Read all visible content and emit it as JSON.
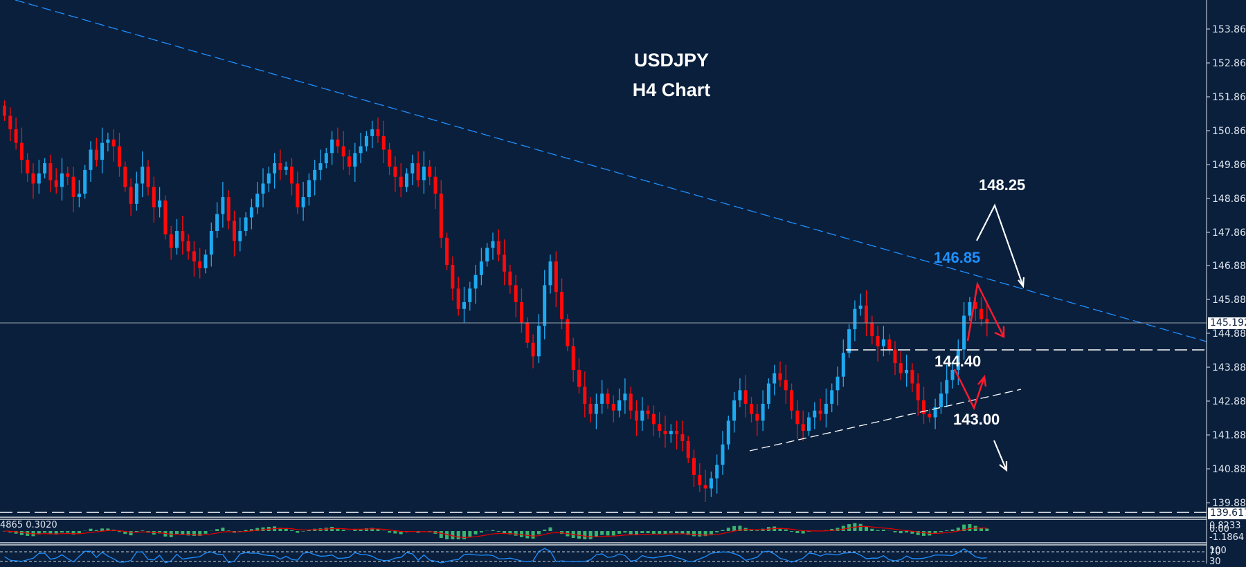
{
  "chart_data": {
    "type": "candlestick",
    "title": "USDJPY",
    "subtitle": "H4 Chart",
    "symbol": "USDJPY",
    "timeframe": "H4",
    "y_axis": {
      "ticks": [
        153.86,
        152.86,
        151.86,
        150.86,
        149.86,
        148.86,
        147.86,
        146.88,
        145.88,
        144.88,
        143.88,
        142.88,
        141.88,
        140.88,
        139.88
      ],
      "range": [
        139.2,
        154.7
      ]
    },
    "current_price": 145.192,
    "low_marker": 139.617,
    "colors": {
      "bull": "#1eaaf1",
      "bear": "#ff0a0a",
      "background": "#0a1f3c",
      "trendline": "#1e90ff"
    },
    "closes": [
      151.3,
      150.9,
      150.5,
      150.0,
      149.6,
      149.3,
      149.6,
      149.9,
      149.4,
      149.2,
      149.6,
      149.5,
      148.9,
      149.0,
      149.7,
      150.3,
      150.0,
      150.5,
      150.6,
      150.4,
      149.8,
      149.2,
      148.7,
      149.3,
      149.8,
      149.2,
      148.6,
      148.8,
      147.8,
      147.4,
      147.9,
      147.6,
      147.3,
      147.0,
      146.8,
      147.2,
      147.9,
      148.4,
      148.9,
      148.2,
      147.6,
      147.9,
      148.3,
      148.6,
      149.0,
      149.3,
      149.6,
      149.9,
      149.7,
      149.8,
      149.3,
      148.6,
      148.9,
      149.4,
      149.7,
      149.9,
      150.2,
      150.6,
      150.4,
      150.1,
      149.8,
      150.2,
      150.4,
      150.7,
      150.9,
      150.7,
      150.3,
      149.8,
      149.5,
      149.2,
      149.6,
      149.9,
      149.4,
      149.8,
      149.5,
      149.0,
      147.7,
      146.9,
      146.2,
      145.6,
      145.8,
      146.2,
      146.6,
      147.0,
      147.4,
      147.6,
      147.2,
      146.7,
      146.3,
      145.8,
      145.2,
      144.6,
      144.2,
      145.1,
      146.3,
      147.0,
      146.1,
      145.3,
      144.5,
      143.8,
      143.3,
      142.8,
      142.5,
      142.8,
      143.1,
      142.8,
      142.6,
      142.9,
      143.1,
      142.6,
      142.3,
      142.6,
      142.5,
      142.2,
      142.0,
      141.9,
      142.0,
      141.9,
      141.7,
      141.2,
      140.7,
      140.4,
      140.3,
      140.6,
      141.0,
      141.6,
      142.3,
      142.9,
      143.2,
      142.8,
      142.5,
      142.3,
      142.8,
      143.4,
      143.7,
      143.5,
      143.2,
      142.6,
      142.2,
      142.0,
      142.4,
      142.6,
      142.5,
      142.8,
      143.2,
      143.6,
      144.3,
      145.0,
      145.6,
      145.7,
      145.2,
      144.8,
      144.5,
      144.7,
      144.4,
      144.0,
      143.7,
      143.8,
      143.4,
      142.9,
      142.5,
      142.4,
      142.7,
      143.1,
      143.5,
      143.8,
      144.4,
      145.4,
      145.8,
      145.6,
      145.3,
      145.19
    ]
  },
  "macd": {
    "label_values": "4865 0.3020",
    "axis": {
      "top": "0.8233",
      "zero": "0.00",
      "bottom": "-1.1864"
    },
    "colors": {
      "histogram": "#3cb371",
      "signal": "#e00000"
    }
  },
  "rsi": {
    "axis": {
      "top": "100",
      "level_high": "70",
      "level_low": "30"
    },
    "color": "#1e90ff"
  },
  "annotations": {
    "resistance_trend": "146.85",
    "upper_target": "148.25",
    "support_level": "144.40",
    "lower_support": "143.00"
  }
}
